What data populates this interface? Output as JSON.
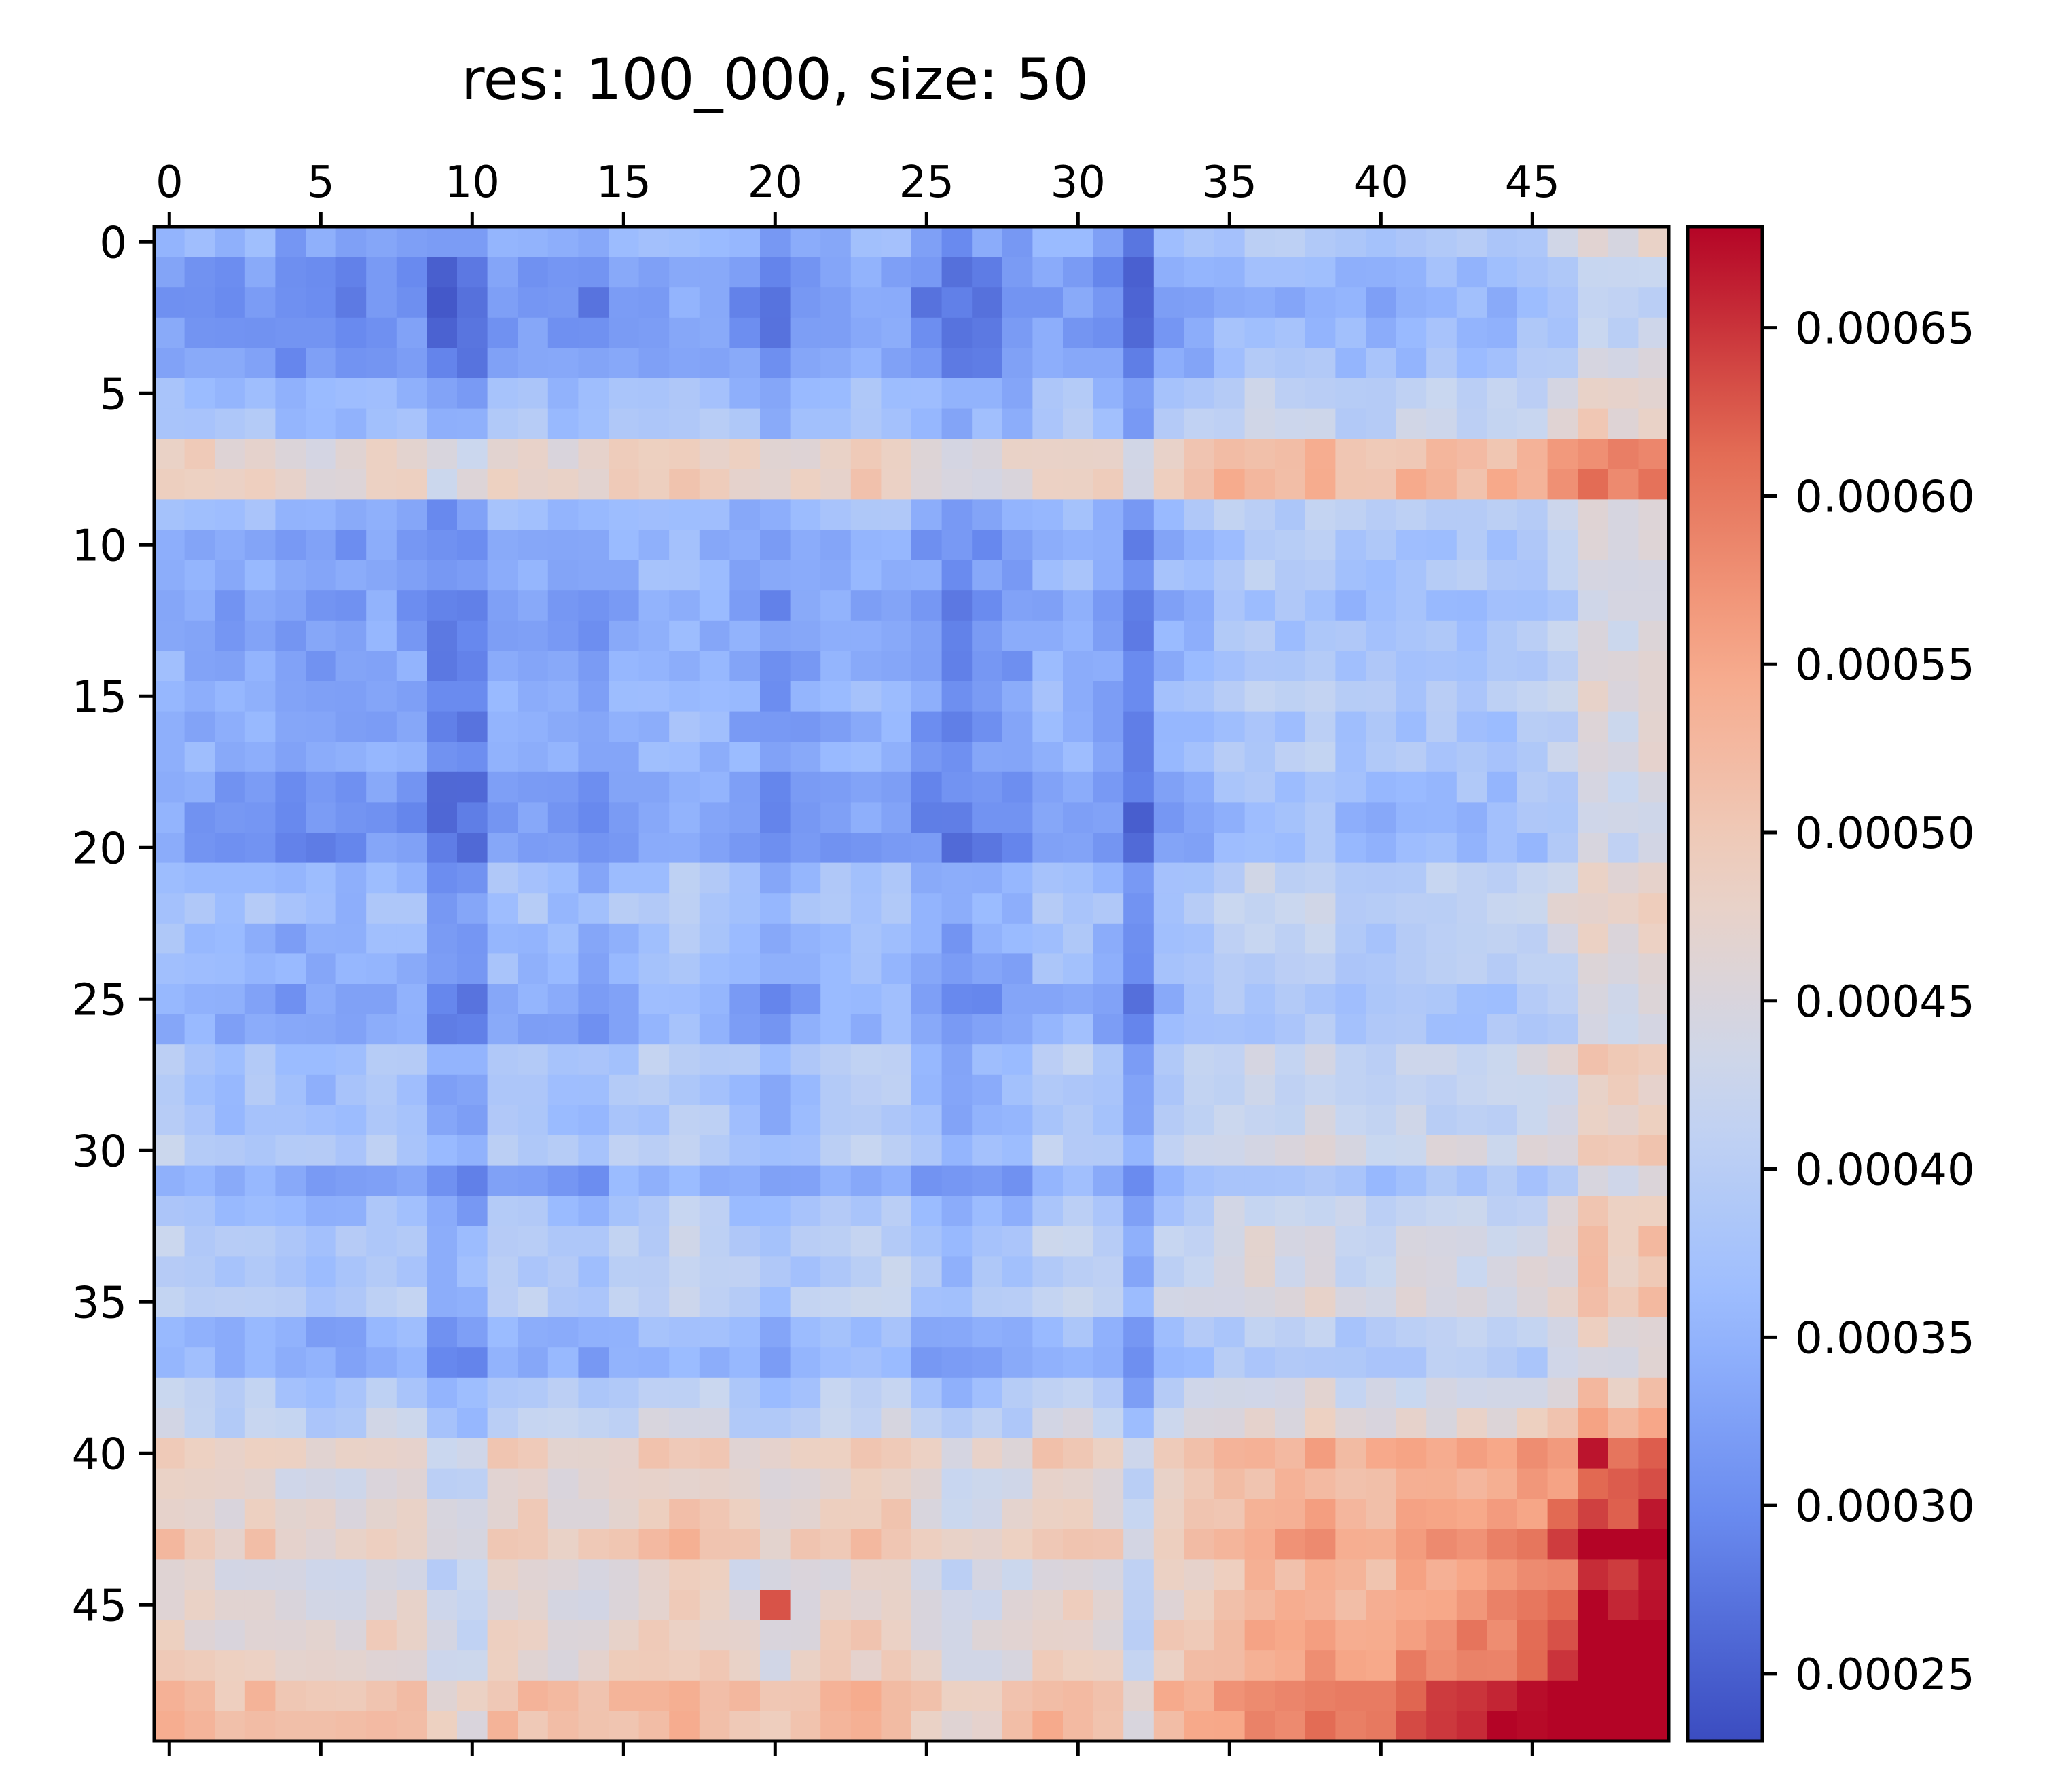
{
  "chart_data": {
    "type": "heatmap",
    "title": "res: 100_000, size: 50",
    "rows": 50,
    "cols": 50,
    "colormap": "coolwarm",
    "colormap_colors": [
      "#3b4cc0",
      "#6788ee",
      "#9abbff",
      "#c9d7f0",
      "#edd1c2",
      "#f7a889",
      "#e26952",
      "#b40426"
    ],
    "vmin": 0.00023,
    "vmax": 0.00068,
    "x_ticks": [
      0,
      5,
      10,
      15,
      20,
      25,
      30,
      35,
      40,
      45
    ],
    "y_ticks": [
      0,
      5,
      10,
      15,
      20,
      25,
      30,
      35,
      40,
      45
    ],
    "colorbar_ticks": [
      "0.00025",
      "0.00030",
      "0.00035",
      "0.00040",
      "0.00045",
      "0.00050",
      "0.00055",
      "0.00060",
      "0.00065"
    ],
    "row_base": [
      0.00033,
      0.0003,
      0.00029,
      0.0003,
      0.00031,
      0.00035,
      0.00036,
      0.00046,
      0.00047,
      0.00034,
      0.00032,
      0.00033,
      0.00031,
      0.00032,
      0.00032,
      0.00033,
      0.00032,
      0.00033,
      0.00031,
      0.0003,
      0.0003,
      0.00035,
      0.00036,
      0.00034,
      0.00034,
      0.00032,
      0.00032,
      0.00037,
      0.00036,
      0.00036,
      0.00038,
      0.00032,
      0.00036,
      0.00038,
      0.00038,
      0.00039,
      0.00034,
      0.00033,
      0.00038,
      0.0004,
      0.00047,
      0.00045,
      0.00046,
      0.00048,
      0.00044,
      0.00045,
      0.00046,
      0.00046,
      0.0005,
      0.0005
    ],
    "col_adj": [
      3e-05,
      2e-05,
      1e-05,
      2e-05,
      0.0,
      0.0,
      0.0,
      2e-05,
      1e-05,
      -3e-05,
      -3e-05,
      2e-05,
      2e-05,
      1e-05,
      0.0,
      2e-05,
      3e-05,
      4e-05,
      3e-05,
      1e-05,
      -1e-05,
      1e-05,
      2e-05,
      3e-05,
      3e-05,
      0.0,
      -2e-05,
      -1e-05,
      0.0,
      3e-05,
      3e-05,
      1e-05,
      -4e-05,
      3e-05,
      4e-05,
      6e-05,
      7e-05,
      6e-05,
      7e-05,
      5e-05,
      5e-05,
      6e-05,
      6e-05,
      6e-05,
      6e-05,
      7e-05,
      9e-05,
      0.00013,
      0.00012,
      0.00013
    ],
    "bottom_right_boost": {
      "start_row": 38,
      "start_col": 34,
      "max": 0.00016
    },
    "outliers": [
      {
        "row": 45,
        "col": 20,
        "value": 0.00063
      },
      {
        "row": 43,
        "col": 47,
        "value": 0.00068
      },
      {
        "row": 43,
        "col": 48,
        "value": 0.00068
      },
      {
        "row": 43,
        "col": 49,
        "value": 0.00068
      },
      {
        "row": 46,
        "col": 48,
        "value": 0.00068
      },
      {
        "row": 46,
        "col": 49,
        "value": 0.00068
      },
      {
        "row": 49,
        "col": 47,
        "value": 0.00068
      },
      {
        "row": 49,
        "col": 46,
        "value": 0.00068
      },
      {
        "row": 49,
        "col": 49,
        "value": 0.00068
      },
      {
        "row": 40,
        "col": 47,
        "value": 0.00067
      }
    ],
    "seed": 7
  }
}
